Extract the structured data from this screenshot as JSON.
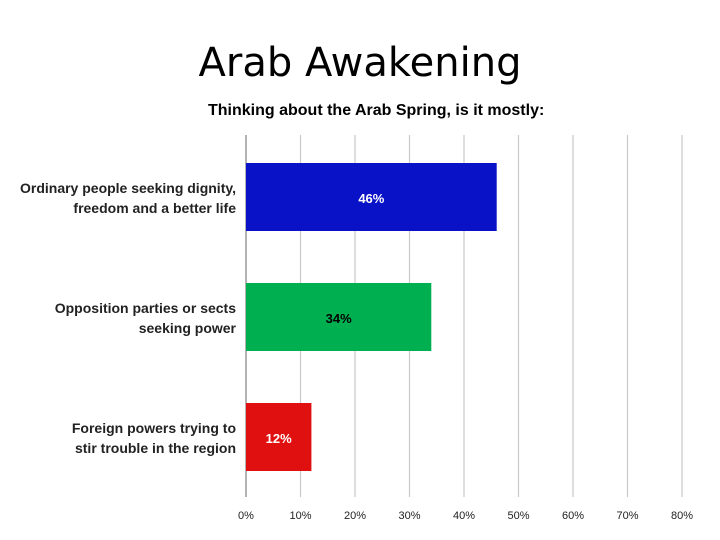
{
  "slide": {
    "title": "Arab Awakening"
  },
  "chart_data": {
    "type": "bar",
    "orientation": "horizontal",
    "title": "Thinking about the Arab Spring, is it mostly:",
    "categories": [
      [
        "Ordinary people seeking dignity,",
        "freedom and a better life"
      ],
      [
        "Opposition parties or sects",
        "seeking power"
      ],
      [
        "Foreign powers trying to",
        "stir trouble in the region"
      ]
    ],
    "values": [
      46,
      34,
      12
    ],
    "value_labels": [
      "46%",
      "34%",
      "12%"
    ],
    "colors": [
      "#0a12c8",
      "#00b050",
      "#e01010"
    ],
    "label_colors": [
      "#ffffff",
      "#000000",
      "#ffffff"
    ],
    "xlim": [
      0,
      80
    ],
    "xticks": [
      0,
      10,
      20,
      30,
      40,
      50,
      60,
      70,
      80
    ],
    "xtick_labels": [
      "0%",
      "10%",
      "20%",
      "30%",
      "40%",
      "50%",
      "60%",
      "70%",
      "80%"
    ],
    "grid": true,
    "gridline_color": "#c8c8c8"
  }
}
